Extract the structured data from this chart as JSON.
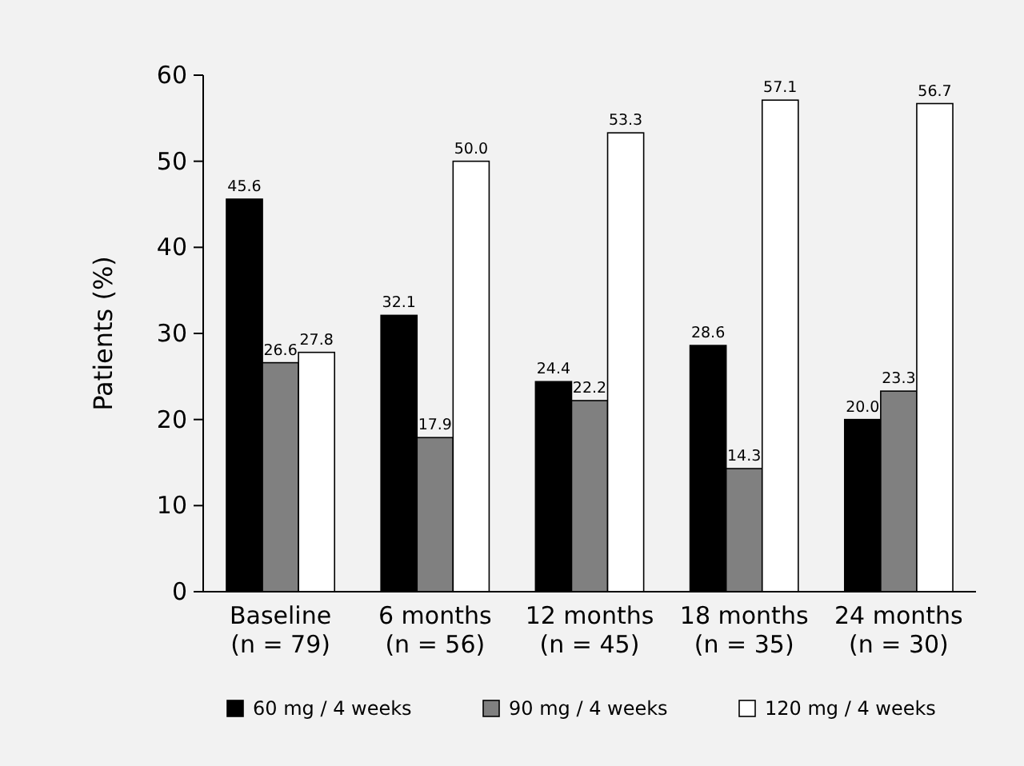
{
  "chart_data": {
    "type": "bar",
    "ylabel": "Patients (%)",
    "categories": [
      "Baseline\n(n = 79)",
      "6 months\n(n = 56)",
      "12 months\n(n = 45)",
      "18 months\n(n = 35)",
      "24 months\n(n = 30)"
    ],
    "series": [
      {
        "name": "60 mg / 4 weeks",
        "color": "#000000",
        "values": [
          45.6,
          32.1,
          24.4,
          28.6,
          20.0
        ],
        "value_labels": [
          "45.6",
          "32.1",
          "24.4",
          "28.6",
          "20.0"
        ]
      },
      {
        "name": "90 mg / 4 weeks",
        "color": "#808080",
        "values": [
          26.6,
          17.9,
          22.2,
          14.3,
          23.3
        ],
        "value_labels": [
          "26.6",
          "17.9",
          "22.2",
          "14.3",
          "23.3"
        ]
      },
      {
        "name": "120 mg / 4 weeks",
        "color": "#ffffff",
        "values": [
          27.8,
          50.0,
          53.3,
          57.1,
          56.7
        ],
        "value_labels": [
          "27.8",
          "50.0",
          "53.3",
          "57.1",
          "56.7"
        ]
      }
    ],
    "ylim": [
      0,
      60
    ],
    "yticks": [
      0,
      10,
      20,
      30,
      40,
      50,
      60
    ],
    "grid": false,
    "legend": "bottom"
  }
}
